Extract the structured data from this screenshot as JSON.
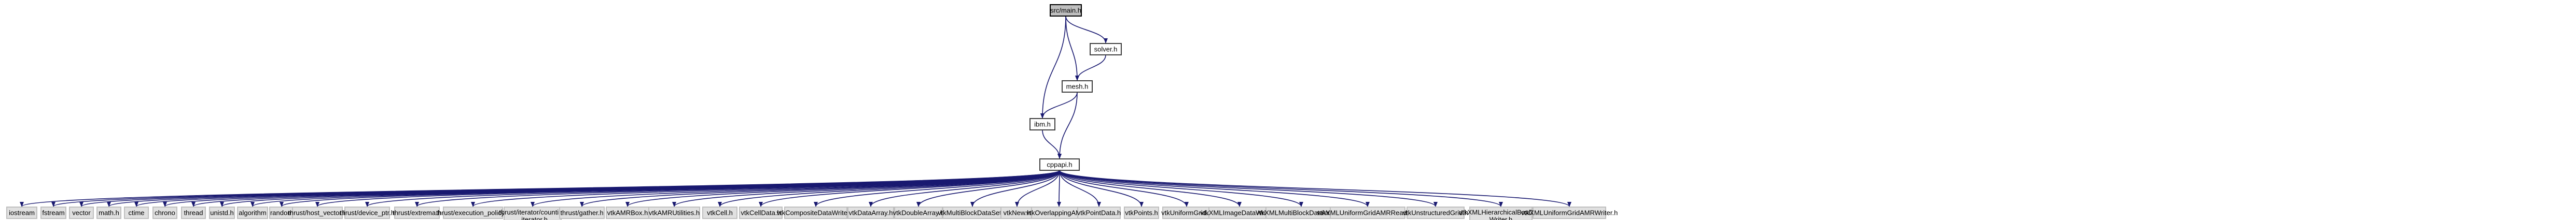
{
  "graph": {
    "root": "src/main.h",
    "nodes": [
      {
        "id": "main",
        "label": [
          "src/main.h"
        ],
        "kind": "root"
      },
      {
        "id": "solver",
        "label": [
          "solver.h"
        ],
        "kind": "inner"
      },
      {
        "id": "mesh",
        "label": [
          "mesh.h"
        ],
        "kind": "inner"
      },
      {
        "id": "ibm",
        "label": [
          "ibm.h"
        ],
        "kind": "inner"
      },
      {
        "id": "cpp",
        "label": [
          "cppapi.h"
        ],
        "kind": "inner"
      },
      {
        "id": "l0",
        "label": [
          "iostream"
        ],
        "kind": "leaf"
      },
      {
        "id": "l1",
        "label": [
          "fstream"
        ],
        "kind": "leaf"
      },
      {
        "id": "l2",
        "label": [
          "vector"
        ],
        "kind": "leaf"
      },
      {
        "id": "l3",
        "label": [
          "math.h"
        ],
        "kind": "leaf"
      },
      {
        "id": "l4",
        "label": [
          "ctime"
        ],
        "kind": "leaf"
      },
      {
        "id": "l5",
        "label": [
          "chrono"
        ],
        "kind": "leaf"
      },
      {
        "id": "l6",
        "label": [
          "thread"
        ],
        "kind": "leaf"
      },
      {
        "id": "l7",
        "label": [
          "unistd.h"
        ],
        "kind": "leaf"
      },
      {
        "id": "l8",
        "label": [
          "algorithm"
        ],
        "kind": "leaf"
      },
      {
        "id": "l9",
        "label": [
          "random"
        ],
        "kind": "leaf"
      },
      {
        "id": "l10",
        "label": [
          "thrust/host_vector.h"
        ],
        "kind": "leaf"
      },
      {
        "id": "l11",
        "label": [
          "thrust/device_ptr.h"
        ],
        "kind": "leaf"
      },
      {
        "id": "l12",
        "label": [
          "thrust/extrema.h"
        ],
        "kind": "leaf"
      },
      {
        "id": "l13",
        "label": [
          "thrust/execution_policy.h"
        ],
        "kind": "leaf"
      },
      {
        "id": "l14",
        "label": [
          "thrust/iterator/counting",
          "_iterator.h"
        ],
        "kind": "leaf"
      },
      {
        "id": "l15",
        "label": [
          "thrust/gather.h"
        ],
        "kind": "leaf"
      },
      {
        "id": "l16",
        "label": [
          "vtkAMRBox.h"
        ],
        "kind": "leaf"
      },
      {
        "id": "l17",
        "label": [
          "vtkAMRUtilities.h"
        ],
        "kind": "leaf"
      },
      {
        "id": "l18",
        "label": [
          "vtkCell.h"
        ],
        "kind": "leaf"
      },
      {
        "id": "l19",
        "label": [
          "vtkCellData.h"
        ],
        "kind": "leaf"
      },
      {
        "id": "l20",
        "label": [
          "vtkCompositeDataWriter.h"
        ],
        "kind": "leaf"
      },
      {
        "id": "l21",
        "label": [
          "vtkDataArray.h"
        ],
        "kind": "leaf"
      },
      {
        "id": "l22",
        "label": [
          "vtkDoubleArray.h"
        ],
        "kind": "leaf"
      },
      {
        "id": "l23",
        "label": [
          "vtkMultiBlockDataSet.h"
        ],
        "kind": "leaf"
      },
      {
        "id": "l24",
        "label": [
          "vtkNew.h"
        ],
        "kind": "leaf"
      },
      {
        "id": "l25",
        "label": [
          "vtkOverlappingAMR.h"
        ],
        "kind": "leaf"
      },
      {
        "id": "l26",
        "label": [
          "vtkPointData.h"
        ],
        "kind": "leaf"
      },
      {
        "id": "l27",
        "label": [
          "vtkPoints.h"
        ],
        "kind": "leaf"
      },
      {
        "id": "l28",
        "label": [
          "vtkUniformGrid.h"
        ],
        "kind": "leaf"
      },
      {
        "id": "l29",
        "label": [
          "vtkXMLImageDataWriter.h"
        ],
        "kind": "leaf"
      },
      {
        "id": "l30",
        "label": [
          "vtkXMLMultiBlockDataWriter.h"
        ],
        "kind": "leaf"
      },
      {
        "id": "l31",
        "label": [
          "vtkXMLUniformGridAMRReader.h"
        ],
        "kind": "leaf"
      },
      {
        "id": "l32",
        "label": [
          "vtkUnstructuredGrid.h"
        ],
        "kind": "leaf"
      },
      {
        "id": "l33",
        "label": [
          "vtkXMLHierarchicalBoxData",
          "Writer.h"
        ],
        "kind": "leaf"
      },
      {
        "id": "l34",
        "label": [
          "vtkXMLUniformGridAMRWriter.h"
        ],
        "kind": "leaf"
      }
    ],
    "edges": [
      [
        "main",
        "solver"
      ],
      [
        "main",
        "mesh"
      ],
      [
        "main",
        "ibm"
      ],
      [
        "solver",
        "mesh"
      ],
      [
        "mesh",
        "ibm"
      ],
      [
        "mesh",
        "cpp"
      ],
      [
        "ibm",
        "cpp"
      ],
      [
        "cpp",
        "l0"
      ],
      [
        "cpp",
        "l1"
      ],
      [
        "cpp",
        "l2"
      ],
      [
        "cpp",
        "l3"
      ],
      [
        "cpp",
        "l4"
      ],
      [
        "cpp",
        "l5"
      ],
      [
        "cpp",
        "l6"
      ],
      [
        "cpp",
        "l7"
      ],
      [
        "cpp",
        "l8"
      ],
      [
        "cpp",
        "l9"
      ],
      [
        "cpp",
        "l10"
      ],
      [
        "cpp",
        "l11"
      ],
      [
        "cpp",
        "l12"
      ],
      [
        "cpp",
        "l13"
      ],
      [
        "cpp",
        "l14"
      ],
      [
        "cpp",
        "l15"
      ],
      [
        "cpp",
        "l16"
      ],
      [
        "cpp",
        "l17"
      ],
      [
        "cpp",
        "l18"
      ],
      [
        "cpp",
        "l19"
      ],
      [
        "cpp",
        "l20"
      ],
      [
        "cpp",
        "l21"
      ],
      [
        "cpp",
        "l22"
      ],
      [
        "cpp",
        "l23"
      ],
      [
        "cpp",
        "l24"
      ],
      [
        "cpp",
        "l25"
      ],
      [
        "cpp",
        "l26"
      ],
      [
        "cpp",
        "l27"
      ],
      [
        "cpp",
        "l28"
      ],
      [
        "cpp",
        "l29"
      ],
      [
        "cpp",
        "l30"
      ],
      [
        "cpp",
        "l31"
      ],
      [
        "cpp",
        "l32"
      ],
      [
        "cpp",
        "l33"
      ],
      [
        "cpp",
        "l34"
      ]
    ],
    "colors": {
      "edge": "#191970",
      "root_fill": "#bfbfbf",
      "leaf_fill": "#e0e0e0",
      "inner_fill": "#ffffff"
    }
  }
}
